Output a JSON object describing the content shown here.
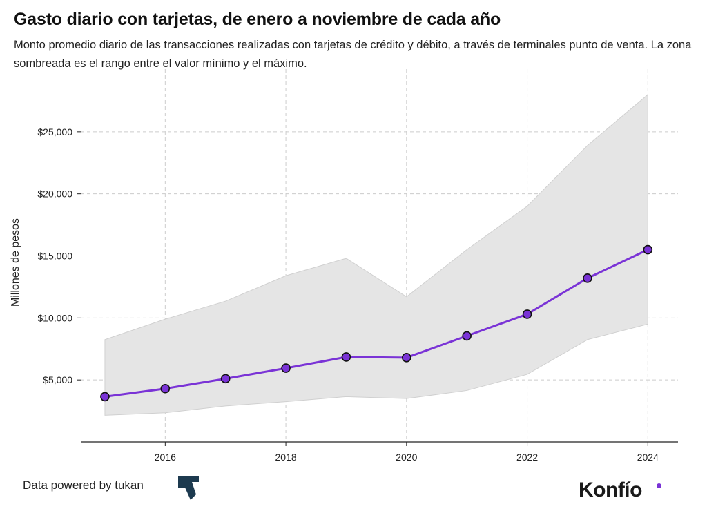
{
  "title": "Gasto diario con tarjetas, de enero a noviembre de cada año",
  "subtitle": "Monto promedio diario de las transacciones realizadas con tarjetas de crédito y débito, a través de terminales punto de venta. La zona sombreada es el rango entre el valor mínimo y el máximo.",
  "footer": {
    "source": "Data powered by tukan",
    "brand": "Konfío"
  },
  "colors": {
    "line": "#7a33d6",
    "band": "#e5e5e5",
    "band_edge": "#d0d0d0",
    "grid": "#cccccc",
    "brand_dot": "#7a33d6",
    "tukan": "#1d3a4f"
  },
  "icons": {
    "tukan_logo": "tukan-logo-icon"
  },
  "chart_data": {
    "type": "line",
    "title": "Gasto diario con tarjetas, de enero a noviembre de cada año",
    "ylabel": "Millones de pesos",
    "xlabel": "",
    "x": [
      2015,
      2016,
      2017,
      2018,
      2019,
      2020,
      2021,
      2022,
      2023,
      2024
    ],
    "series": [
      {
        "values": [
          3650,
          4300,
          5100,
          5950,
          6850,
          6800,
          8550,
          10300,
          13200,
          15500
        ]
      }
    ],
    "band": {
      "min": [
        2150,
        2350,
        2900,
        3250,
        3650,
        3500,
        4150,
        5450,
        8250,
        9500
      ],
      "max": [
        8250,
        9900,
        11350,
        13400,
        14800,
        11700,
        15500,
        19000,
        23900,
        28000
      ]
    },
    "xlim": [
      2014.6,
      2024.5
    ],
    "ylim": [
      0,
      29500
    ],
    "xticks": [
      2016,
      2018,
      2020,
      2022,
      2024
    ],
    "yticks": [
      5000,
      10000,
      15000,
      20000,
      25000
    ],
    "ytick_labels": [
      "$5,000",
      "$10,000",
      "$15,000",
      "$20,000",
      "$25,000"
    ],
    "grid": true,
    "legend": "none"
  }
}
